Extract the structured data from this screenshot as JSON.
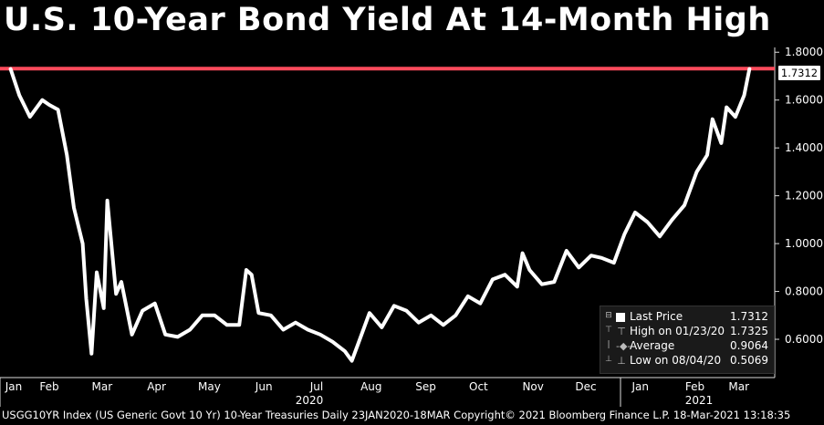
{
  "title": "U.S. 10-Year Bond Yield At 14-Month High",
  "footer": "USGG10YR Index (US Generic Govt 10 Yr) 10-Year Treasuries  Daily 23JAN2020-18MAR Copyright© 2021 Bloomberg Finance L.P. 18-Mar-2021 13:18:35",
  "price_badge": "1.7312",
  "legend": {
    "rows": [
      {
        "symbol": "square-icon",
        "label": "Last Price",
        "value": "1.7312"
      },
      {
        "symbol": "high-marker-icon",
        "label": "High on 01/23/20",
        "value": "1.7325"
      },
      {
        "symbol": "average-marker-icon",
        "label": "Average",
        "value": "0.9064"
      },
      {
        "symbol": "low-marker-icon",
        "label": "Low on 08/04/20",
        "value": "0.5069"
      }
    ]
  },
  "colors": {
    "background": "#000000",
    "line": "#ffffff",
    "reference_line": "#ff4b5c",
    "axis": "#dddddd"
  },
  "chart_data": {
    "type": "line",
    "title": "U.S. 10-Year Bond Yield At 14-Month High",
    "x_ticks": [
      "Jan",
      "Feb",
      "Mar",
      "Apr",
      "May",
      "Jun",
      "Jul",
      "Aug",
      "Sep",
      "Oct",
      "Nov",
      "Dec",
      "Jan",
      "Feb",
      "Mar"
    ],
    "x_year_labels": [
      "2020",
      "2021"
    ],
    "y_ticks": [
      "1.8000",
      "1.6000",
      "1.4000",
      "1.2000",
      "1.0000",
      "0.8000",
      "0.6000"
    ],
    "ylim": [
      0.44,
      1.82
    ],
    "reference_line": 1.7312,
    "series": [
      {
        "x": [
          "2020-01-23",
          "2020-01-28",
          "2020-02-03",
          "2020-02-10",
          "2020-02-14",
          "2020-02-19",
          "2020-02-24",
          "2020-02-28",
          "2020-03-04",
          "2020-03-06",
          "2020-03-09",
          "2020-03-12",
          "2020-03-16",
          "2020-03-18",
          "2020-03-23",
          "2020-03-26",
          "2020-04-01",
          "2020-04-07",
          "2020-04-14",
          "2020-04-20",
          "2020-04-27",
          "2020-05-04",
          "2020-05-11",
          "2020-05-18",
          "2020-05-25",
          "2020-06-01",
          "2020-06-05",
          "2020-06-08",
          "2020-06-12",
          "2020-06-19",
          "2020-06-26",
          "2020-07-03",
          "2020-07-10",
          "2020-07-17",
          "2020-07-24",
          "2020-07-31",
          "2020-08-04",
          "2020-08-07",
          "2020-08-14",
          "2020-08-21",
          "2020-08-28",
          "2020-09-04",
          "2020-09-11",
          "2020-09-18",
          "2020-09-25",
          "2020-10-02",
          "2020-10-09",
          "2020-10-16",
          "2020-10-23",
          "2020-10-30",
          "2020-11-06",
          "2020-11-09",
          "2020-11-13",
          "2020-11-20",
          "2020-11-27",
          "2020-12-04",
          "2020-12-11",
          "2020-12-18",
          "2020-12-24",
          "2020-12-31",
          "2021-01-06",
          "2021-01-12",
          "2021-01-19",
          "2021-01-26",
          "2021-02-02",
          "2021-02-09",
          "2021-02-16",
          "2021-02-22",
          "2021-02-25",
          "2021-03-02",
          "2021-03-05",
          "2021-03-10",
          "2021-03-15",
          "2021-03-18"
        ],
        "values": [
          1.73,
          1.62,
          1.53,
          1.6,
          1.58,
          1.56,
          1.37,
          1.15,
          1.0,
          0.77,
          0.54,
          0.88,
          0.73,
          1.18,
          0.79,
          0.84,
          0.62,
          0.72,
          0.75,
          0.62,
          0.61,
          0.64,
          0.7,
          0.7,
          0.66,
          0.66,
          0.89,
          0.87,
          0.71,
          0.7,
          0.64,
          0.67,
          0.64,
          0.62,
          0.59,
          0.55,
          0.51,
          0.57,
          0.71,
          0.65,
          0.74,
          0.72,
          0.67,
          0.7,
          0.66,
          0.7,
          0.78,
          0.75,
          0.85,
          0.87,
          0.82,
          0.96,
          0.89,
          0.83,
          0.84,
          0.97,
          0.9,
          0.95,
          0.94,
          0.92,
          1.04,
          1.13,
          1.09,
          1.03,
          1.1,
          1.16,
          1.3,
          1.37,
          1.52,
          1.42,
          1.57,
          1.53,
          1.62,
          1.73
        ]
      }
    ]
  }
}
